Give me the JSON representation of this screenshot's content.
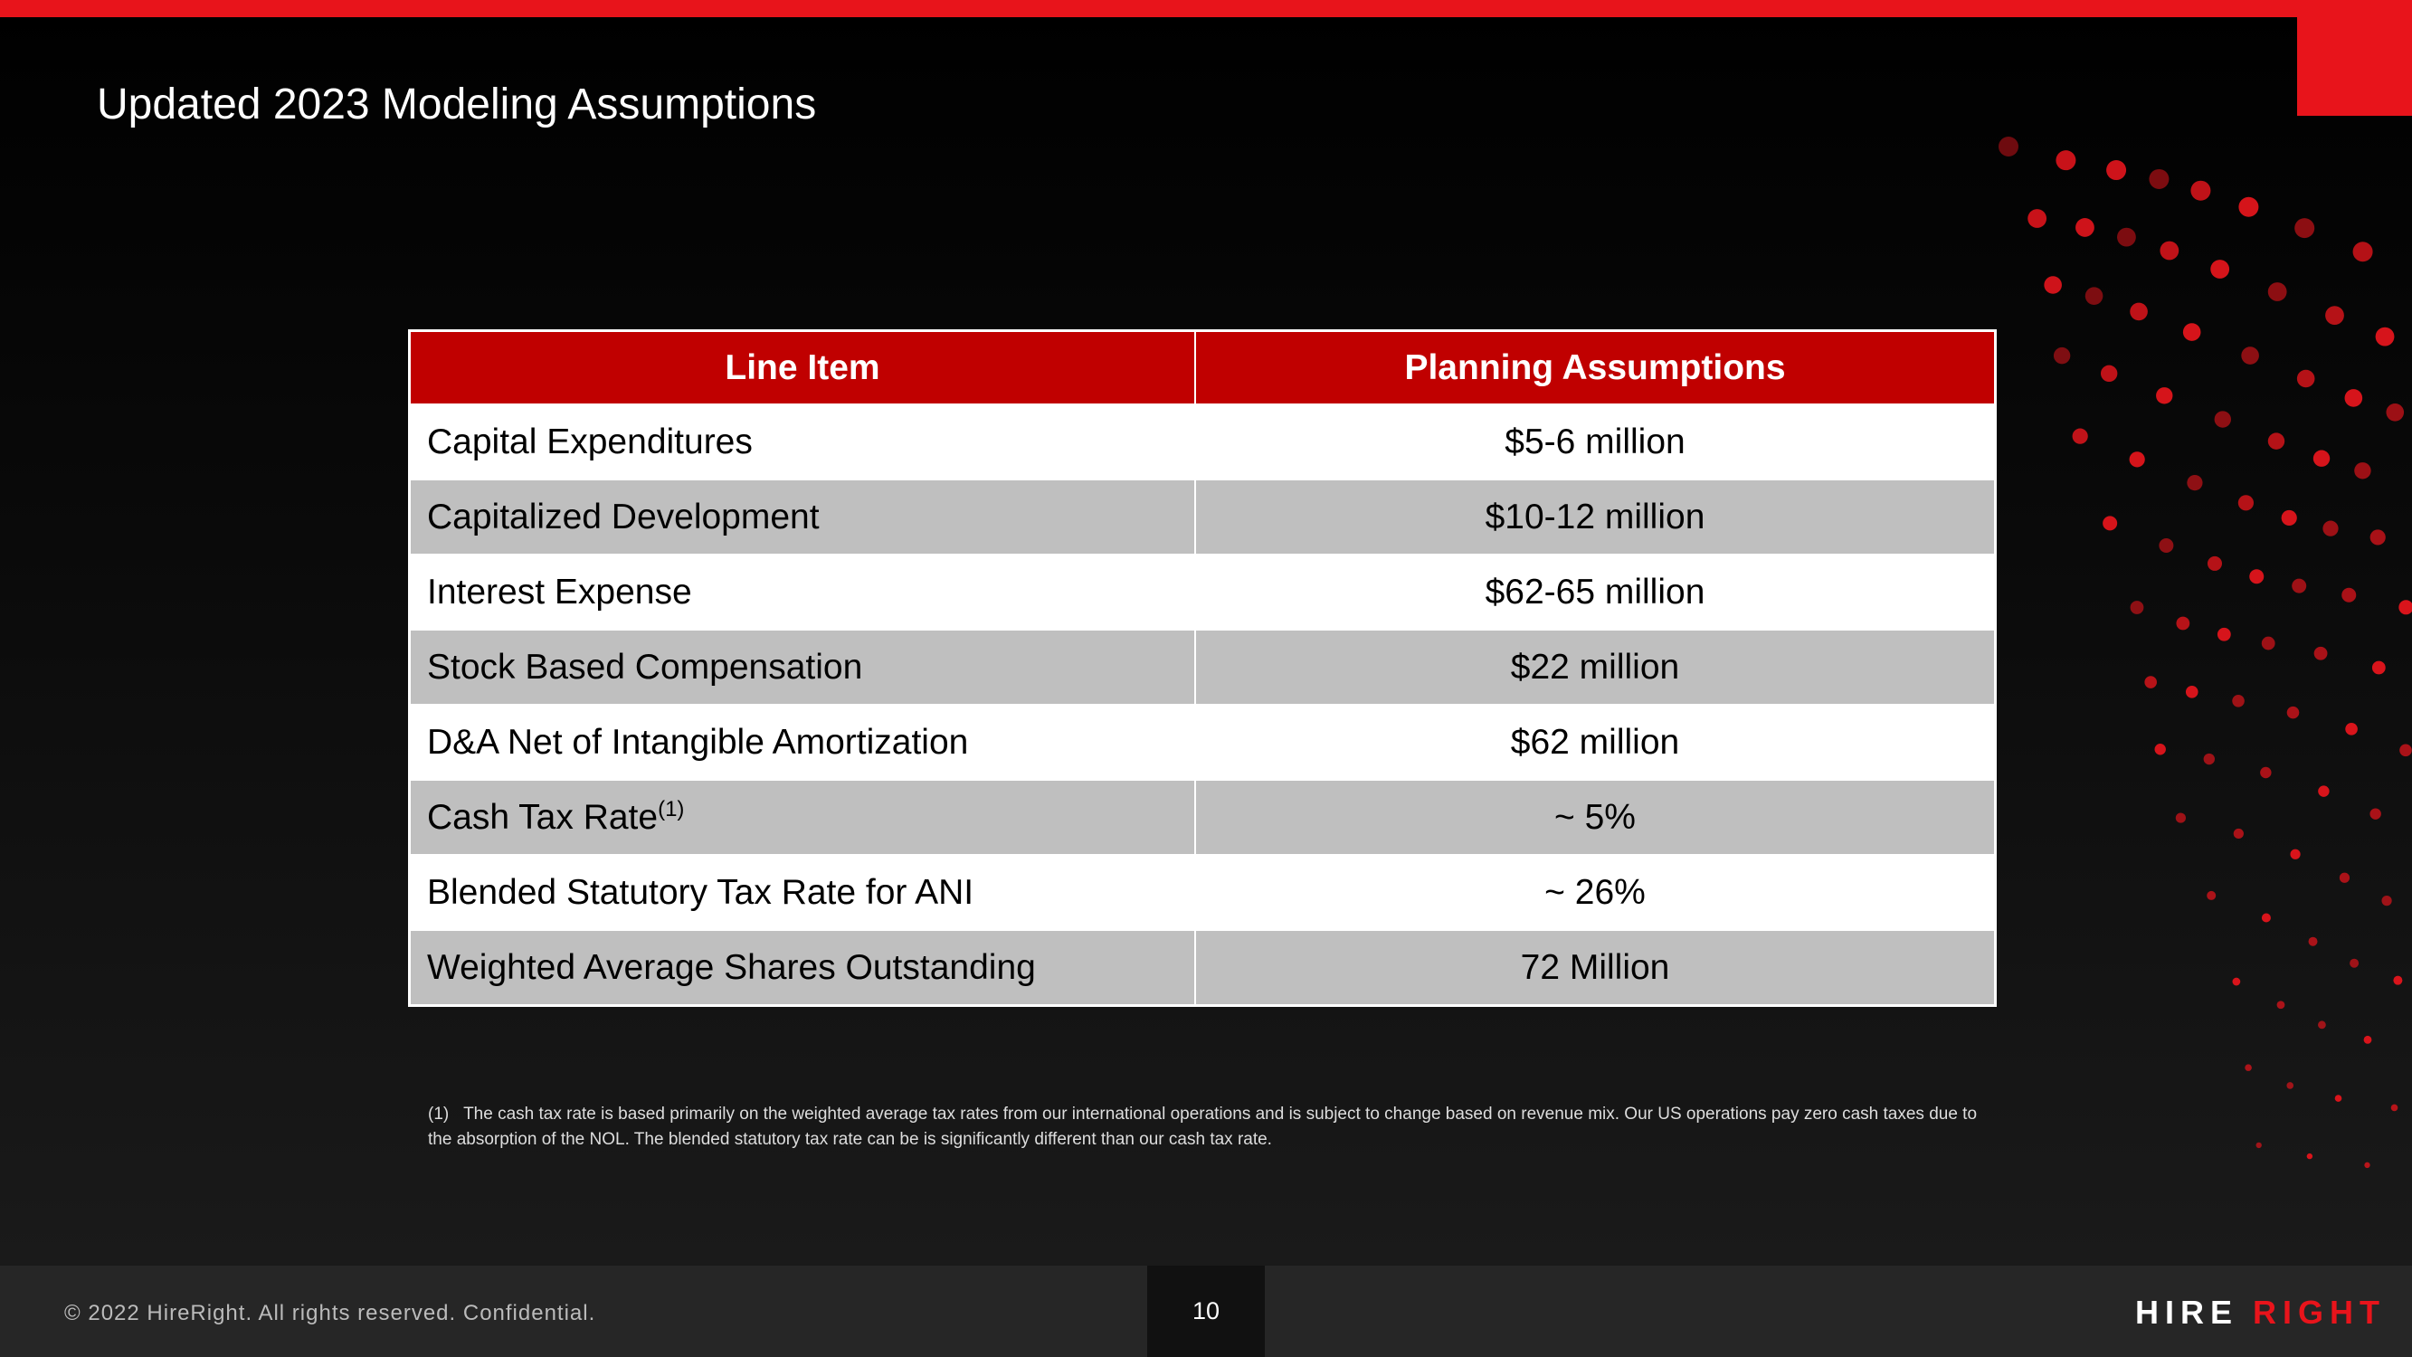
{
  "title": "Updated 2023 Modeling Assumptions",
  "table": {
    "header": [
      "Line Item",
      "Planning Assumptions"
    ],
    "rows": [
      {
        "item": "Capital Expenditures",
        "value": "$5-6 million"
      },
      {
        "item": "Capitalized Development",
        "value": "$10-12 million"
      },
      {
        "item": "Interest Expense",
        "value": "$62-65 million"
      },
      {
        "item": "Stock Based Compensation",
        "value": "$22 million"
      },
      {
        "item": "D&A Net of Intangible Amortization",
        "value": "$62 million"
      },
      {
        "item": "Cash Tax Rate",
        "note": "(1)",
        "value": "~ 5%"
      },
      {
        "item": "Blended Statutory Tax Rate for ANI",
        "value": "~ 26%"
      },
      {
        "item": "Weighted Average Shares Outstanding",
        "value": "72 Million"
      }
    ]
  },
  "footnote": {
    "marker": "(1)",
    "text": "The cash tax rate is based primarily on the weighted average tax rates from our international operations and is subject to change based on revenue mix.  Our US operations pay zero cash taxes due to the absorption of the NOL.  The  blended statutory tax rate can be is significantly different than our cash tax rate."
  },
  "footer": {
    "copyright": "© 2022 HireRight. All rights reserved. Confidential.",
    "page": "10",
    "logo": [
      "HIRE",
      "RIGHT"
    ]
  }
}
